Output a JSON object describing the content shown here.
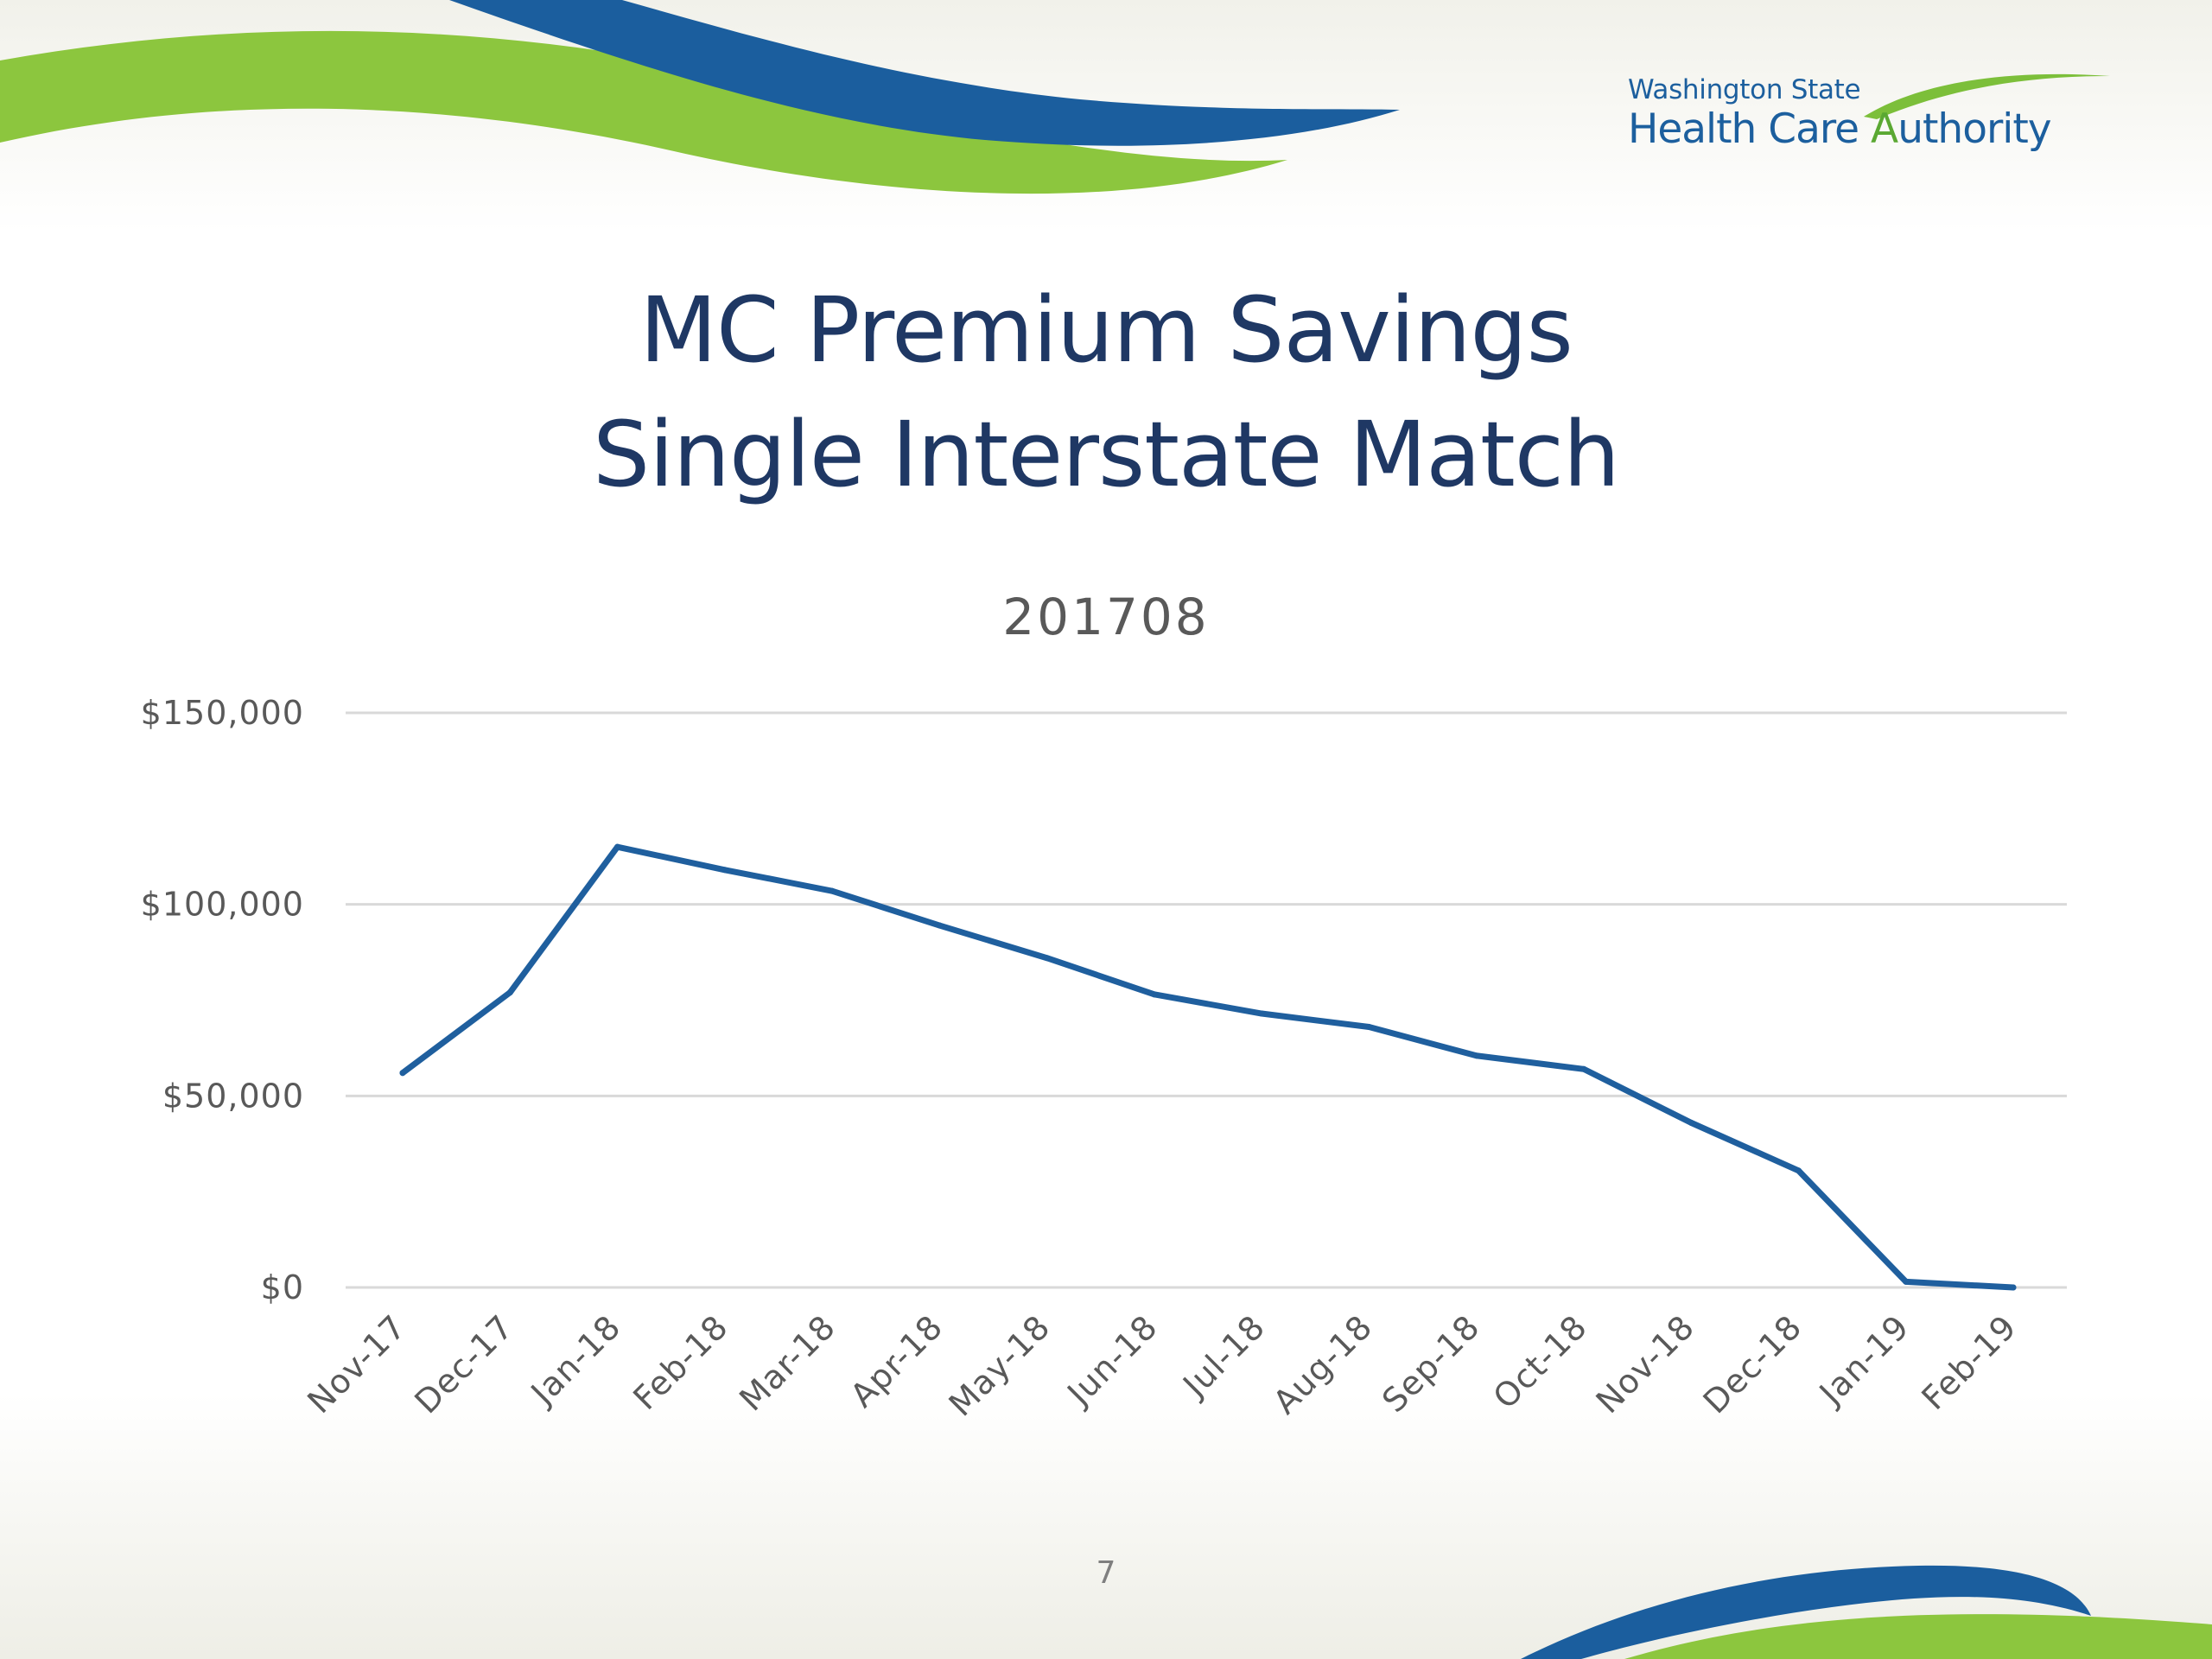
{
  "logo": {
    "line1": "Washington State",
    "line2_part1": "Health Care ",
    "line2_cap": "A",
    "line2_part2": "uthority"
  },
  "slide": {
    "title_line1": "MC Premium Savings",
    "title_line2": "Single Interstate Match",
    "page_number": "7"
  },
  "colors": {
    "line": "#1f5f9e",
    "grid": "#d9d9d9",
    "tick_text": "#595959",
    "title": "#1f3864",
    "wave_blue": "#1b5e9e",
    "wave_green": "#8cc63e"
  },
  "chart_data": {
    "type": "line",
    "title": "201708",
    "xlabel": "",
    "ylabel": "",
    "ylim": [
      0,
      150000
    ],
    "y_ticks": [
      0,
      50000,
      100000,
      150000
    ],
    "y_tick_labels": [
      "$0",
      "$50,000",
      "$100,000",
      "$150,000"
    ],
    "grid": true,
    "legend": "none",
    "categories": [
      "Nov-17",
      "Dec-17",
      "Jan-18",
      "Feb-18",
      "Mar-18",
      "Apr-18",
      "May-18",
      "Jun-18",
      "Jul-18",
      "Aug-18",
      "Sep-18",
      "Oct-18",
      "Nov-18",
      "Dec-18",
      "Jan-19",
      "Feb-19"
    ],
    "series": [
      {
        "values": [
          56000,
          77000,
          115000,
          109000,
          103500,
          94500,
          86000,
          76500,
          71500,
          68000,
          60500,
          57000,
          43000,
          30500,
          1500,
          0
        ]
      }
    ]
  }
}
